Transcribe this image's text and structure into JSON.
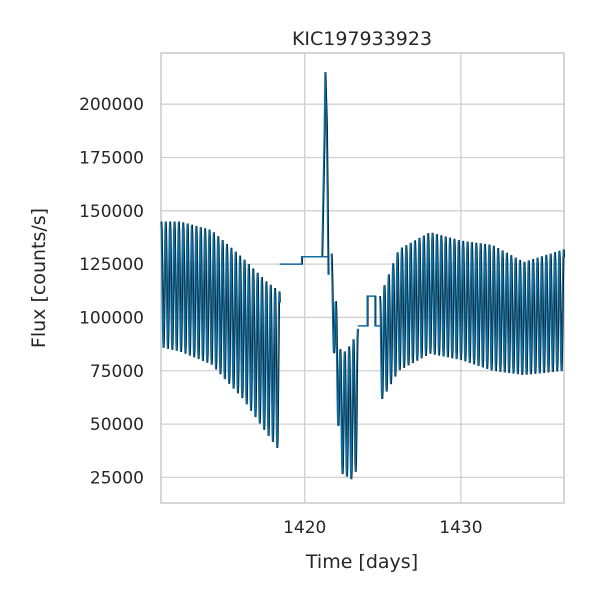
{
  "chart_data": {
    "type": "line",
    "title": "KIC197933923",
    "xlabel": "Time [days]",
    "ylabel": "Flux [counts/s]",
    "xlim": [
      1410.8,
      1436.6
    ],
    "ylim": [
      13000,
      224000
    ],
    "xticks": [
      1420,
      1430
    ],
    "yticks": [
      25000,
      50000,
      75000,
      100000,
      125000,
      150000,
      175000,
      200000
    ],
    "grid": true,
    "colors": {
      "series_main": "#0b6ea3",
      "series_raw": "#000000",
      "grid": "#d0d0d0",
      "axes": "#c8c8c8"
    },
    "series": [
      {
        "style": "oscillating",
        "segments": [
          {
            "x": [
              1410.8,
              1418.4
            ],
            "period": 0.28,
            "upper": [
              [
                1410.8,
                145000
              ],
              [
                1412,
                145000
              ],
              [
                1414,
                141000
              ],
              [
                1416,
                128000
              ],
              [
                1417.5,
                117000
              ],
              [
                1418.4,
                112000
              ]
            ],
            "lower": [
              [
                1410.8,
                86000
              ],
              [
                1412,
                84000
              ],
              [
                1414,
                78000
              ],
              [
                1416,
                62000
              ],
              [
                1417.5,
                46000
              ],
              [
                1418.4,
                37000
              ]
            ]
          },
          {
            "x": [
              1420.2,
              1421.4
            ],
            "steps": [
              [
                1418.4,
                125000
              ],
              [
                1419.8,
                128500
              ],
              [
                1421.0,
                128500
              ]
            ]
          },
          {
            "x": [
              1421.1,
              1421.5
            ],
            "spike": [
              [
                1421.1,
                128500
              ],
              [
                1421.25,
                186000
              ],
              [
                1421.3,
                215000
              ],
              [
                1421.4,
                190000
              ],
              [
                1421.5,
                120000
              ]
            ]
          },
          {
            "x": [
              1421.7,
              1423.4
            ],
            "period": 0.28,
            "upper": [
              [
                1421.7,
                130000
              ],
              [
                1422.3,
                82000
              ],
              [
                1423.0,
                88000
              ],
              [
                1423.4,
                95000
              ]
            ],
            "lower": [
              [
                1421.7,
                101000
              ],
              [
                1422.3,
                27000
              ],
              [
                1423.0,
                24000
              ],
              [
                1423.4,
                30000
              ]
            ]
          },
          {
            "x": [
              1423.4,
              1424.8
            ],
            "steps": [
              [
                1423.4,
                96000
              ],
              [
                1424.0,
                110000
              ],
              [
                1424.5,
                96000
              ]
            ]
          },
          {
            "x": [
              1424.8,
              1436.6
            ],
            "period": 0.28,
            "upper": [
              [
                1424.8,
                110000
              ],
              [
                1426,
                132000
              ],
              [
                1428,
                140000
              ],
              [
                1430,
                136000
              ],
              [
                1432,
                134000
              ],
              [
                1434,
                126000
              ],
              [
                1436.6,
                132000
              ]
            ],
            "lower": [
              [
                1424.8,
                60000
              ],
              [
                1426,
                75000
              ],
              [
                1428,
                83000
              ],
              [
                1430,
                80000
              ],
              [
                1432,
                75000
              ],
              [
                1434,
                73000
              ],
              [
                1436.6,
                75000
              ]
            ]
          }
        ]
      }
    ]
  }
}
